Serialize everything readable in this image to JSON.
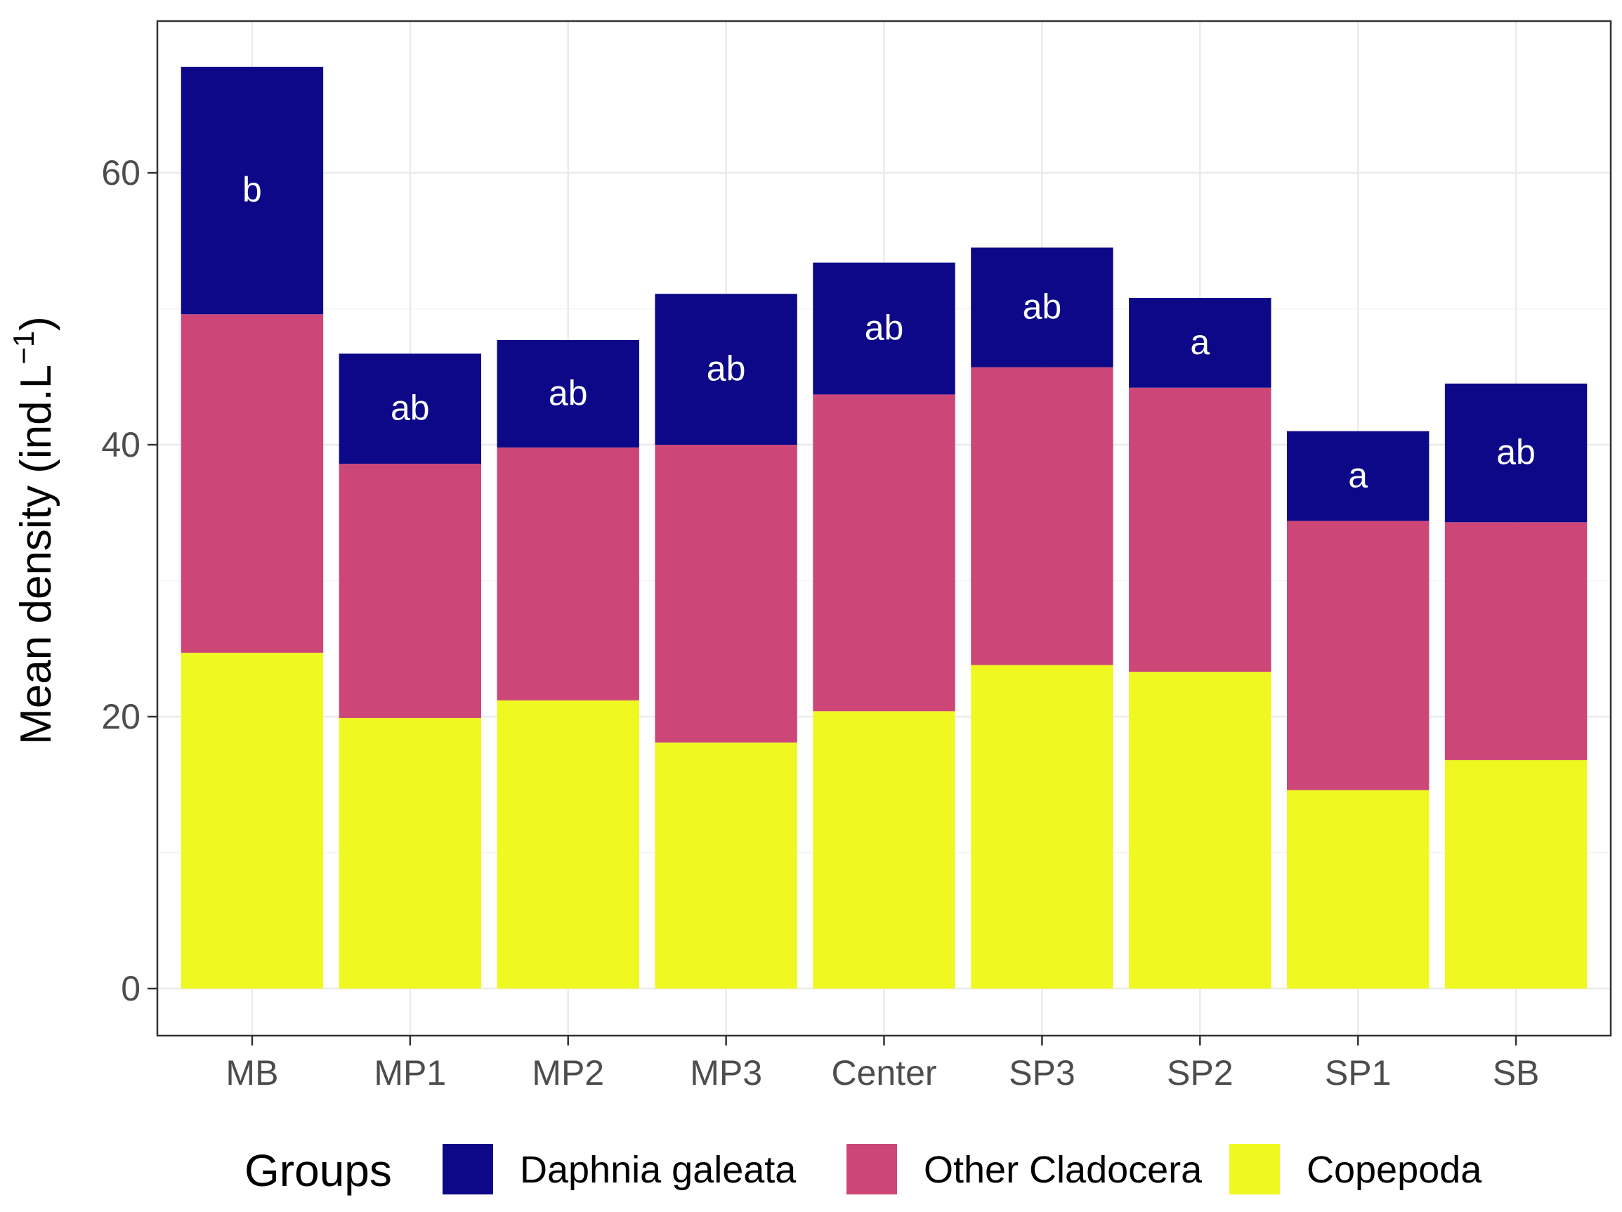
{
  "chart_data": {
    "type": "bar",
    "stacked": true,
    "title": "",
    "xlabel": "",
    "ylabel": "Mean density (ind.L",
    "ylabel_superscript": "−1",
    "ylabel_close": ")",
    "ylim": [
      -3,
      70
    ],
    "yticks": [
      0,
      20,
      40,
      60
    ],
    "grid": true,
    "categories": [
      "MB",
      "MP1",
      "MP2",
      "MP3",
      "Center",
      "SP3",
      "SP2",
      "SP1",
      "SB"
    ],
    "series": [
      {
        "name": "Copepoda",
        "color": "#EFF821",
        "values": [
          24.7,
          19.9,
          21.2,
          18.1,
          20.4,
          23.8,
          23.3,
          14.6,
          16.8
        ]
      },
      {
        "name": "Other Cladocera",
        "color": "#CC4778",
        "values": [
          24.9,
          18.7,
          18.6,
          21.9,
          23.3,
          21.9,
          20.9,
          19.8,
          17.5
        ]
      },
      {
        "name": "Daphnia galeata",
        "color": "#0D0887",
        "values": [
          18.2,
          8.1,
          7.9,
          11.1,
          9.7,
          8.8,
          6.6,
          6.6,
          10.2
        ]
      }
    ],
    "bar_labels": [
      "b",
      "ab",
      "ab",
      "ab",
      "ab",
      "ab",
      "a",
      "a",
      "ab"
    ],
    "legend": {
      "title": "Groups",
      "position": "bottom",
      "items": [
        "Daphnia galeata",
        "Other Cladocera",
        "Copepoda"
      ]
    }
  }
}
